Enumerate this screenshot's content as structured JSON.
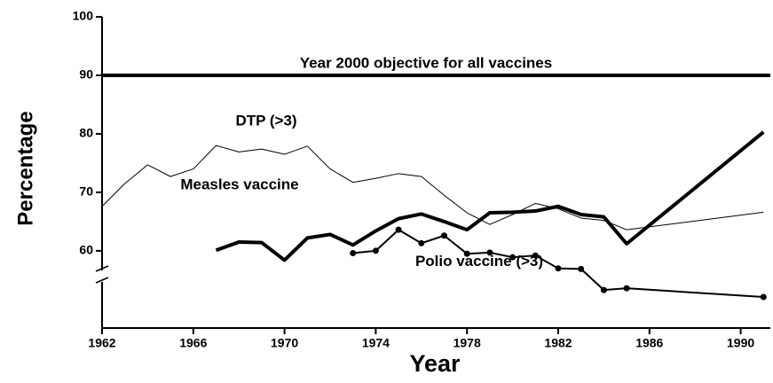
{
  "chart_data": {
    "type": "line",
    "xlabel": "Year",
    "ylabel": "Percentage",
    "xlim": [
      1962,
      1991.3
    ],
    "ylim": [
      46.8,
      100
    ],
    "xticks": [
      1962,
      1966,
      1970,
      1974,
      1978,
      1982,
      1986,
      1990
    ],
    "yticks": [
      60,
      70,
      80,
      90,
      100
    ],
    "y_axis_break": true,
    "reference_line": {
      "value": 90,
      "label": "Year 2000 objective for all vaccines",
      "color": "#000000"
    },
    "series": [
      {
        "name": "DTP (>3)",
        "color": "#000000",
        "width": 1,
        "markers": false,
        "x": [
          1962,
          1963,
          1964,
          1965,
          1966,
          1967,
          1968,
          1969,
          1970,
          1971,
          1972,
          1973,
          1974,
          1975,
          1976,
          1977,
          1978,
          1979,
          1980,
          1981,
          1982,
          1983,
          1984,
          1985,
          1991
        ],
        "values": [
          67.6,
          71.5,
          74.7,
          72.7,
          74.0,
          78.0,
          76.9,
          77.4,
          76.5,
          77.9,
          74.0,
          71.7,
          72.4,
          73.2,
          72.7,
          69.5,
          66.5,
          64.5,
          66.2,
          68.1,
          67.2,
          65.6,
          65.2,
          63.6,
          66.6
        ]
      },
      {
        "name": "Measles vaccine",
        "color": "#000000",
        "width": 4,
        "markers": false,
        "x": [
          1967,
          1968,
          1969,
          1970,
          1971,
          1972,
          1973,
          1974,
          1975,
          1976,
          1977,
          1978,
          1979,
          1980,
          1981,
          1982,
          1983,
          1984,
          1985,
          1991
        ],
        "values": [
          60.1,
          61.5,
          61.4,
          58.4,
          62.2,
          62.8,
          61.0,
          63.4,
          65.5,
          66.3,
          65.0,
          63.6,
          66.5,
          66.6,
          66.8,
          67.6,
          66.2,
          65.8,
          61.2,
          80.3
        ]
      },
      {
        "name": "Polio vaccine (>3)",
        "color": "#000000",
        "width": 2,
        "markers": true,
        "x": [
          1973,
          1974,
          1975,
          1976,
          1977,
          1978,
          1979,
          1980,
          1981,
          1982,
          1983,
          1984,
          1985,
          1991
        ],
        "values": [
          59.6,
          60.0,
          63.6,
          61.3,
          62.6,
          59.5,
          59.7,
          58.9,
          59.2,
          57.0,
          56.9,
          53.3,
          53.6,
          52.1
        ]
      }
    ]
  }
}
